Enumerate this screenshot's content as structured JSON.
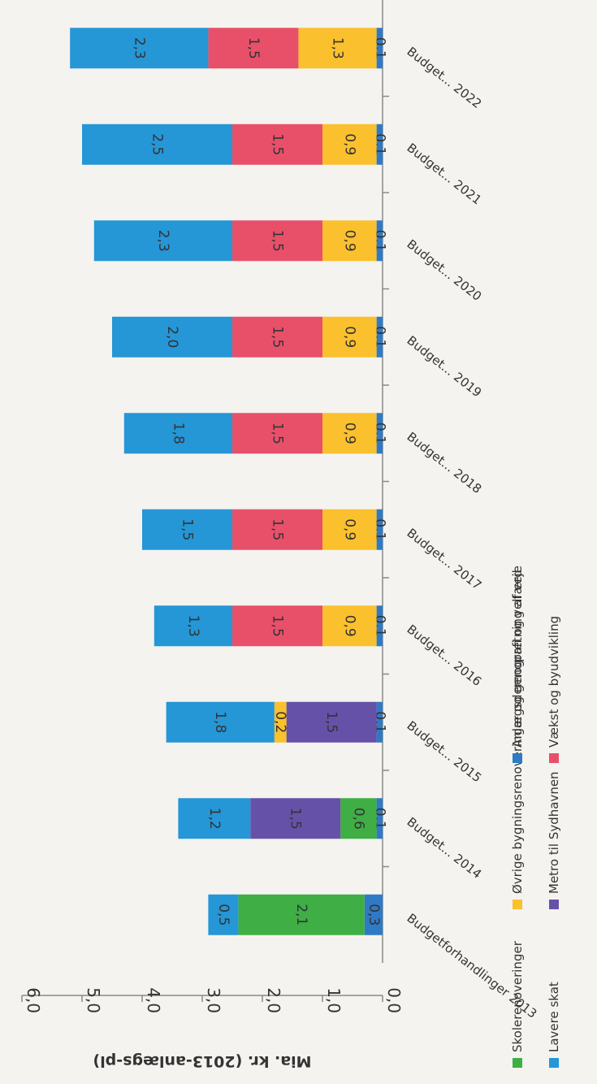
{
  "chart_data": {
    "type": "bar",
    "stacked": true,
    "orientation": "rotated-90-clockwise",
    "ylabel": "Mia. kr. (2013-anlægs-pl)",
    "xlabel": "",
    "ylim": [
      0,
      6
    ],
    "yticks": [
      "0,0",
      "1,0",
      "2,0",
      "3,0",
      "4,0",
      "5,0",
      "6,0"
    ],
    "grid": false,
    "legend_position": "bottom",
    "categories": [
      "Budgetforhandlinger 2013",
      "Budget... 2014",
      "Budget... 2015",
      "Budget... 2016",
      "Budget... 2017",
      "Budget... 2018",
      "Budget... 2019",
      "Budget... 2020",
      "Budget... 2021",
      "Budget... 2022"
    ],
    "series": [
      {
        "name": "Anlægsdemografi og velfærd",
        "color": "#2f7ac6",
        "values": [
          0.3,
          0.1,
          0.1,
          0.1,
          0.1,
          0.1,
          0.1,
          0.1,
          0.1,
          0.1
        ],
        "labels": [
          "0,3",
          "0,1",
          "0,1",
          "0,1",
          "0,1",
          "0,1",
          "0,1",
          "0,1",
          "0,1",
          "0,1"
        ]
      },
      {
        "name": "Skolerenoveringer",
        "color": "#3fae45",
        "values": [
          2.1,
          0.6,
          0,
          0,
          0,
          0,
          0,
          0,
          0,
          0
        ],
        "labels": [
          "2,1",
          "0,6",
          "",
          "",
          "",
          "",
          "",
          "",
          "",
          ""
        ]
      },
      {
        "name": "Metro til Sydhavnen",
        "color": "#6651a8",
        "values": [
          0,
          1.5,
          1.5,
          0,
          0,
          0,
          0,
          0,
          0,
          0
        ],
        "labels": [
          "",
          "1,5",
          "1,5",
          "",
          "",
          "",
          "",
          "",
          "",
          ""
        ]
      },
      {
        "name": "Øvrige bygningsrenoveringer og genopretning af veje",
        "color": "#fbc02d",
        "values": [
          0,
          0,
          0.2,
          0.9,
          0.9,
          0.9,
          0.9,
          0.9,
          0.9,
          1.3
        ],
        "labels": [
          "",
          "",
          "0,2",
          "0,9",
          "0,9",
          "0,9",
          "0,9",
          "0,9",
          "0,9",
          "1,3"
        ]
      },
      {
        "name": "Vækst og byudvikling",
        "color": "#e8506a",
        "values": [
          0,
          0,
          0,
          1.5,
          1.5,
          1.5,
          1.5,
          1.5,
          1.5,
          1.5
        ],
        "labels": [
          "",
          "",
          "",
          "1,5",
          "1,5",
          "1,5",
          "1,5",
          "1,5",
          "1,5",
          "1,5"
        ]
      },
      {
        "name": "Lavere skat",
        "color": "#2596d6",
        "values": [
          0.5,
          1.2,
          1.8,
          1.3,
          1.5,
          1.8,
          2.0,
          2.3,
          2.5,
          2.3
        ],
        "labels": [
          "0,5",
          "1,2",
          "1,8",
          "1,3",
          "1,5",
          "1,8",
          "2,0",
          "2,3",
          "2,5",
          "2,3"
        ]
      }
    ],
    "legend": {
      "columns": [
        [
          "Lavere skat",
          "Metro til Sydhavnen",
          "Vækst og byudvikling"
        ],
        [
          "Skolerenoveringer",
          "Øvrige bygningsrenoveringer og genopretning af veje",
          "Anlægsdemografi og velfærd"
        ]
      ]
    }
  }
}
